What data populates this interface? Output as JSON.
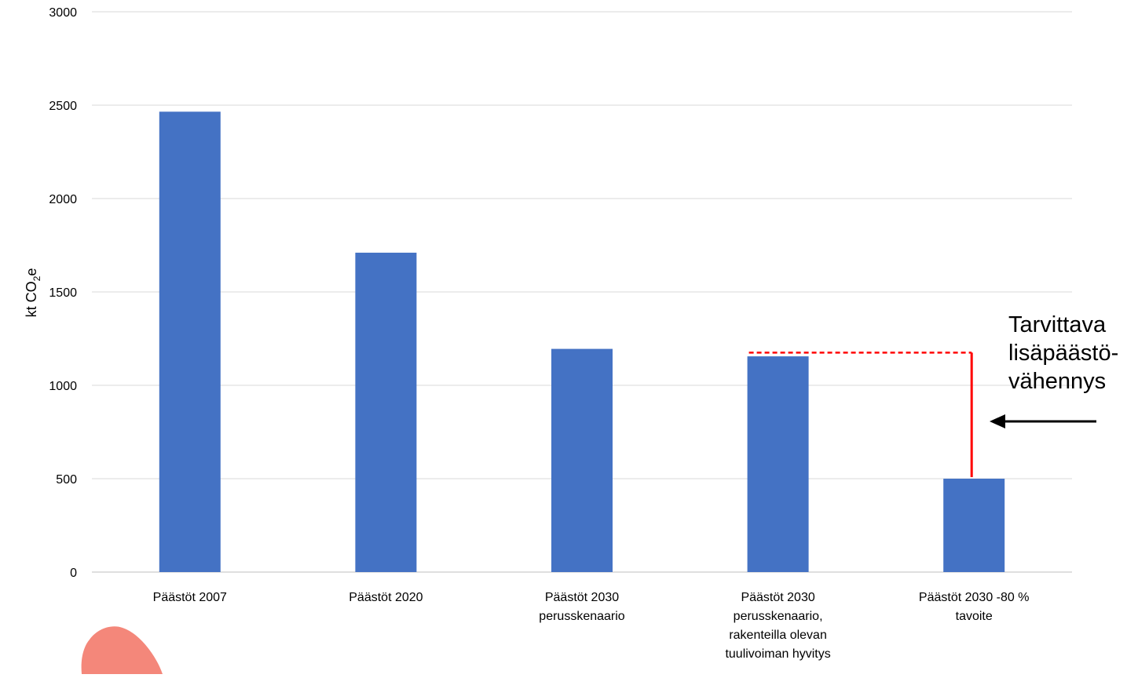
{
  "chart_data": {
    "type": "bar",
    "title": "",
    "xlabel": "",
    "ylabel": "kt CO",
    "ylabel_subscript": "2",
    "ylabel_suffix": "e",
    "ylim": [
      0,
      3000
    ],
    "yticks": [
      "0",
      "500",
      "1000",
      "1500",
      "2000",
      "2500",
      "3000"
    ],
    "ytick_values": [
      0,
      500,
      1000,
      1500,
      2000,
      2500,
      3000
    ],
    "grid": true,
    "legend": "none",
    "bar_color": "#4472C4",
    "categories": [
      [
        "Päästöt 2007"
      ],
      [
        "Päästöt 2020"
      ],
      [
        "Päästöt 2030",
        "perusskenaario"
      ],
      [
        "Päästöt 2030",
        "perusskenaario,",
        "rakenteilla olevan",
        "tuulivoiman hyvitys"
      ],
      [
        "Päästöt 2030 -80 %",
        "tavoite"
      ]
    ],
    "values": [
      2465,
      1710,
      1195,
      1155,
      500
    ],
    "annotation": {
      "lines": [
        "Tarvittava",
        "lisäpäästö-",
        "vähennys"
      ],
      "gap_from_value": 1175,
      "gap_to_value": 500,
      "line_color": "#FF0000",
      "arrow_color": "#000000"
    },
    "decoration_color": "#F4877A"
  }
}
